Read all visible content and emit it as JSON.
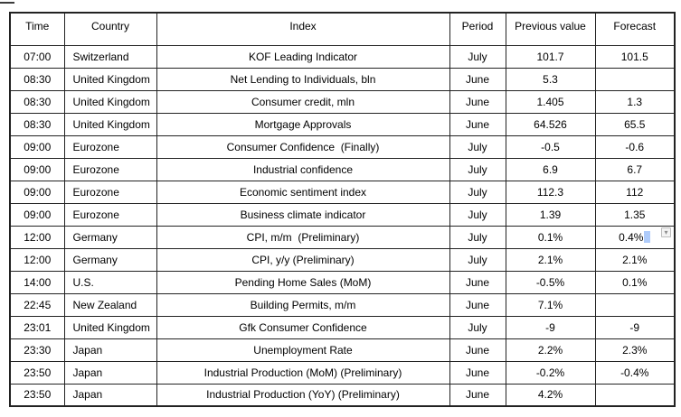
{
  "page": {
    "background": "#ffffff",
    "text_color": "#000000",
    "border_color": "#222222"
  },
  "table": {
    "column_keys": [
      "time",
      "country",
      "index",
      "period",
      "previous-value",
      "forecast"
    ],
    "columns": [
      "Time",
      "Country",
      "Index",
      "Period",
      "Previous value",
      "Forecast"
    ],
    "rows": [
      [
        "07:00",
        "Switzerland",
        "KOF Leading Indicator",
        "July",
        "101.7",
        "101.5"
      ],
      [
        "08:30",
        "United Kingdom",
        "Net Lending to Individuals, bln",
        "June",
        "5.3",
        ""
      ],
      [
        "08:30",
        "United Kingdom",
        "Consumer credit, mln",
        "June",
        "1.405",
        "1.3"
      ],
      [
        "08:30",
        "United Kingdom",
        "Mortgage Approvals",
        "June",
        "64.526",
        "65.5"
      ],
      [
        "09:00",
        "Eurozone",
        "Consumer Confidence  (Finally)",
        "July",
        "-0.5",
        "-0.6"
      ],
      [
        "09:00",
        "Eurozone",
        "Industrial confidence",
        "July",
        "6.9",
        "6.7"
      ],
      [
        "09:00",
        "Eurozone",
        "Economic sentiment index",
        "July",
        "112.3",
        "112"
      ],
      [
        "09:00",
        "Eurozone",
        "Business climate indicator",
        "July",
        "1.39",
        "1.35"
      ],
      [
        "12:00",
        "Germany",
        "CPI, m/m  (Preliminary)",
        "July",
        "0.1%",
        "0.4%"
      ],
      [
        "12:00",
        "Germany",
        "CPI, y/y (Preliminary)",
        "July",
        "2.1%",
        "2.1%"
      ],
      [
        "14:00",
        "U.S.",
        "Pending Home Sales (MoM)",
        "June",
        "-0.5%",
        "0.1%"
      ],
      [
        "22:45",
        "New Zealand",
        "Building Permits, m/m",
        "June",
        "7.1%",
        ""
      ],
      [
        "23:01",
        "United Kingdom",
        "Gfk Consumer Confidence",
        "July",
        "-9",
        "-9"
      ],
      [
        "23:30",
        "Japan",
        "Unemployment Rate",
        "June",
        "2.2%",
        "2.3%"
      ],
      [
        "23:50",
        "Japan",
        "Industrial Production (MoM) (Preliminary)",
        "June",
        "-0.2%",
        "-0.4%"
      ],
      [
        "23:50",
        "Japan",
        "Industrial Production (YoY) (Preliminary)",
        "June",
        "4.2%",
        ""
      ]
    ]
  },
  "cursor": {
    "row_index": 8,
    "col_index": 5,
    "highlight_color": "#aecbfa",
    "dropdown_glyph": "▾"
  }
}
